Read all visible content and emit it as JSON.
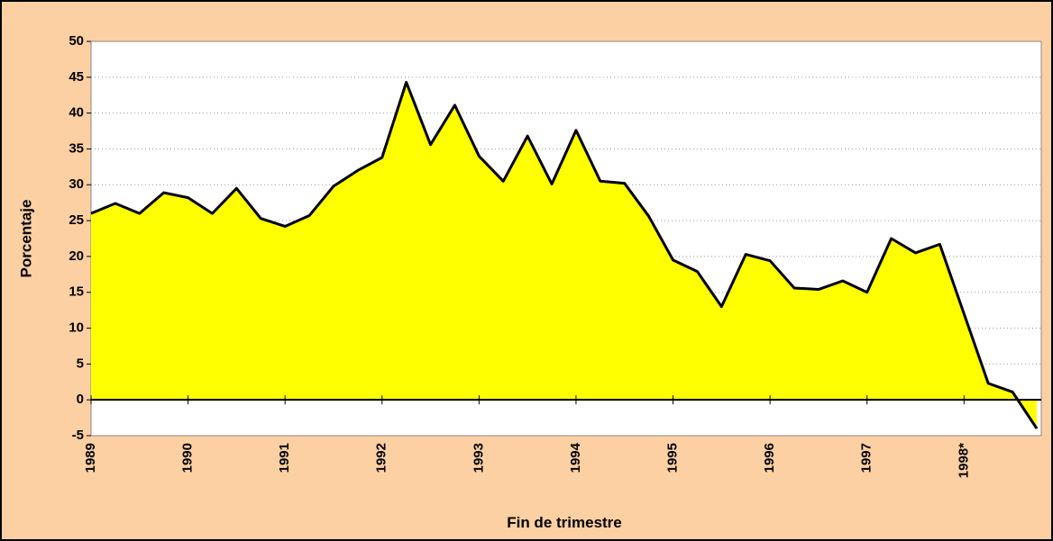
{
  "chart_data": {
    "type": "area",
    "y_label": "Porcentaje",
    "x_label": "Fin de trimestre",
    "categories": [
      "1989",
      null,
      null,
      null,
      "1990",
      null,
      null,
      null,
      "1991",
      null,
      null,
      null,
      "1992",
      null,
      null,
      null,
      "1993",
      null,
      null,
      null,
      "1994",
      null,
      null,
      null,
      "1995",
      null,
      null,
      null,
      "1996",
      null,
      null,
      null,
      "1997",
      null,
      null,
      null,
      "1998*",
      null,
      null,
      null
    ],
    "values": [
      26,
      27.4,
      26,
      28.9,
      28.2,
      26,
      29.5,
      25.3,
      24.2,
      25.7,
      29.8,
      32,
      33.8,
      44.3,
      35.6,
      41.1,
      34,
      30.5,
      36.8,
      30.1,
      37.6,
      30.5,
      30.2,
      25.6,
      19.5,
      17.9,
      13,
      20.3,
      19.4,
      15.6,
      15.4,
      16.6,
      15,
      22.5,
      20.5,
      21.7,
      12,
      2.3,
      1.1,
      -4
    ],
    "color": "#ffff00",
    "line_color": "#000000",
    "ylim": [
      -5,
      50
    ],
    "yticks": [
      -5,
      0,
      5,
      10,
      15,
      20,
      25,
      30,
      35,
      40,
      45,
      50
    ],
    "grid": true
  }
}
